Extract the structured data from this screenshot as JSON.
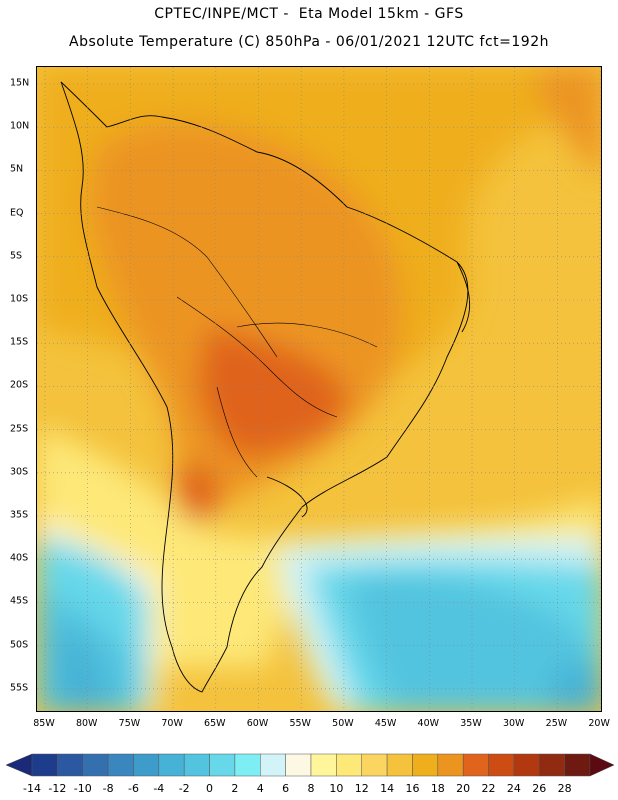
{
  "header": {
    "line1": "CPTEC/INPE/MCT -  Eta Model 15km - GFS",
    "line2": "Absolute Temperature (C) 850hPa - 06/01/2021 12UTC fct=192h"
  },
  "axes": {
    "lat_labels": [
      "15N",
      "10N",
      "5N",
      "EQ",
      "5S",
      "10S",
      "15S",
      "20S",
      "25S",
      "30S",
      "35S",
      "40S",
      "45S",
      "50S",
      "55S"
    ],
    "lon_labels": [
      "85W",
      "80W",
      "75W",
      "70W",
      "65W",
      "60W",
      "55W",
      "50W",
      "45W",
      "40W",
      "35W",
      "30W",
      "25W",
      "20W"
    ]
  },
  "colorbar": {
    "values": [
      "-14",
      "-12",
      "-10",
      "-8",
      "-6",
      "-4",
      "-2",
      "0",
      "2",
      "4",
      "6",
      "8",
      "10",
      "12",
      "14",
      "16",
      "18",
      "20",
      "22",
      "24",
      "26",
      "28"
    ],
    "colors": [
      "#1e3c8c",
      "#2b58a0",
      "#3470b0",
      "#3a86bf",
      "#3e9ccb",
      "#46b2d6",
      "#52c4df",
      "#66d8ea",
      "#7ceef4",
      "#d2f4f8",
      "#fdf8e4",
      "#fff59a",
      "#fde878",
      "#fad560",
      "#f4c23c",
      "#efae1c",
      "#ec9420",
      "#e0641c",
      "#cc4c14",
      "#b23810",
      "#902a10",
      "#6e1a10"
    ],
    "under_color": "#1a2a78",
    "over_color": "#5a0a10"
  }
}
